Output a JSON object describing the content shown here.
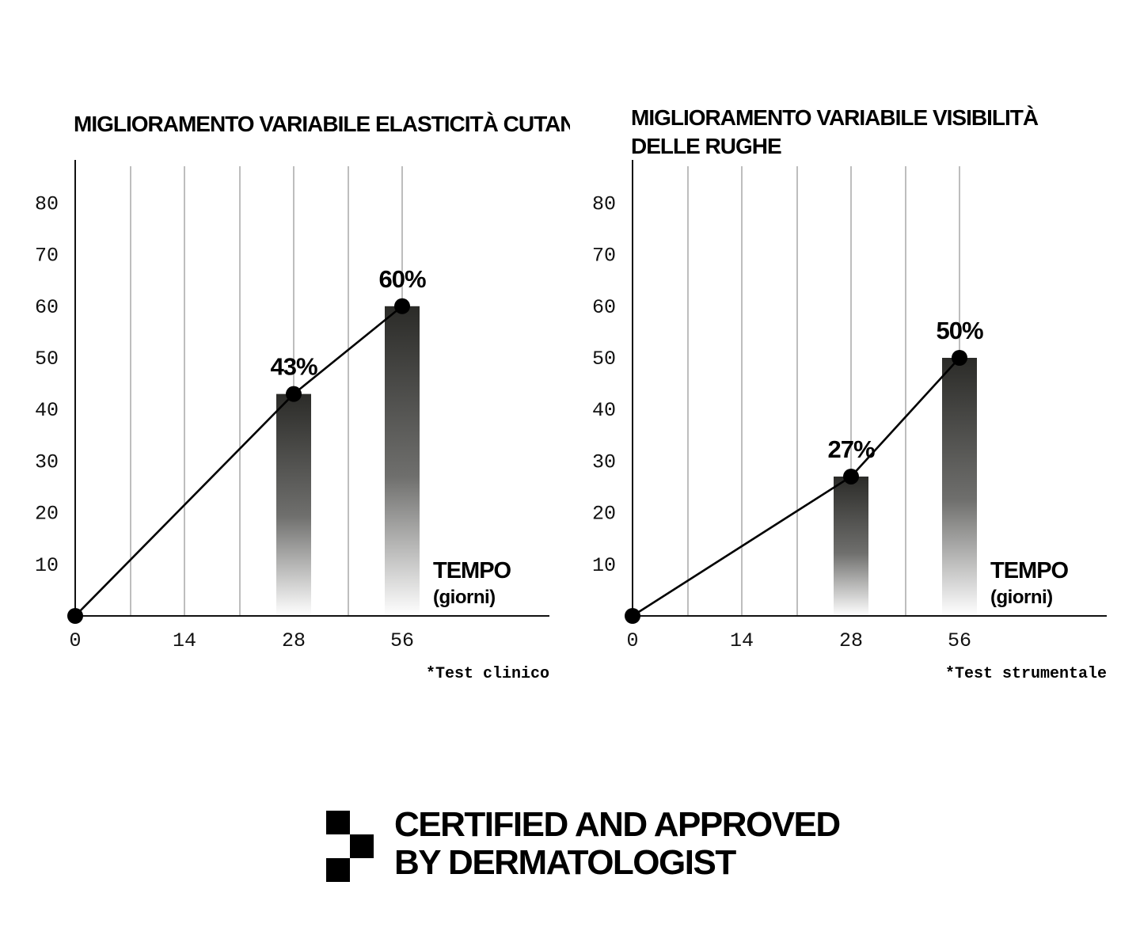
{
  "chart_data": [
    {
      "type": "bar",
      "title_lines": [
        "MIGLIORAMENTO VARIABILE ELASTICITÀ CUTAN"
      ],
      "xlabel": "TEMPO",
      "xlabel_sub": "(giorni)",
      "ylabel": "",
      "x_ticks": [
        "0",
        "14",
        "28",
        "56"
      ],
      "y_ticks": [
        10,
        20,
        30,
        40,
        50,
        60,
        70,
        80
      ],
      "ylim": [
        0,
        88
      ],
      "grid": "vertical",
      "categories": [
        "28",
        "56"
      ],
      "values": [
        43,
        60
      ],
      "data_labels": [
        "43%",
        "60%"
      ],
      "line_points": [
        {
          "x": "0",
          "y": 0
        },
        {
          "x": "28",
          "y": 43
        },
        {
          "x": "56",
          "y": 60
        }
      ],
      "footnote": "*Test clinico",
      "bar_gradient": [
        "#2b2b28",
        "#ffffff"
      ]
    },
    {
      "type": "bar",
      "title_lines": [
        "MIGLIORAMENTO VARIABILE VISIBILITÀ",
        "DELLE RUGHE"
      ],
      "xlabel": "TEMPO",
      "xlabel_sub": "(giorni)",
      "ylabel": "",
      "x_ticks": [
        "0",
        "14",
        "28",
        "56"
      ],
      "y_ticks": [
        10,
        20,
        30,
        40,
        50,
        60,
        70,
        80
      ],
      "ylim": [
        0,
        88
      ],
      "grid": "vertical",
      "categories": [
        "28",
        "56"
      ],
      "values": [
        27,
        50
      ],
      "data_labels": [
        "27%",
        "50%"
      ],
      "line_points": [
        {
          "x": "0",
          "y": 0
        },
        {
          "x": "28",
          "y": 27
        },
        {
          "x": "56",
          "y": 50
        }
      ],
      "footnote": "*Test strumentale",
      "bar_gradient": [
        "#2b2b28",
        "#ffffff"
      ]
    }
  ],
  "certification": {
    "line1": "CERTIFIED AND APPROVED",
    "line2": "BY DERMATOLOGIST"
  }
}
